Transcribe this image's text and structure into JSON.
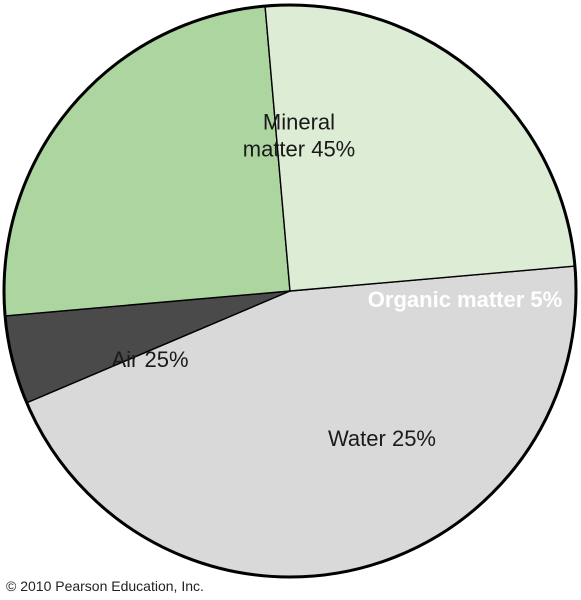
{
  "chart_data": {
    "type": "pie",
    "slices": [
      {
        "label": "Mineral matter 45%",
        "label_lines": [
          "Mineral",
          "matter 45%"
        ],
        "value": 45,
        "color": "#d9d9d9",
        "text_color": "#1a1a1a"
      },
      {
        "label": "Organic matter 5%",
        "label_lines": [
          "Organic matter 5%"
        ],
        "value": 5,
        "color": "#4a4a4a",
        "text_color": "#ffffff"
      },
      {
        "label": "Water 25%",
        "label_lines": [
          "Water 25%"
        ],
        "value": 25,
        "color": "#add5a0",
        "text_color": "#1a1a1a"
      },
      {
        "label": "Air 25%",
        "label_lines": [
          "Air 25%"
        ],
        "value": 25,
        "color": "#ddecd4",
        "text_color": "#1a1a1a"
      }
    ]
  },
  "copyright": "© 2010 Pearson Education, Inc."
}
